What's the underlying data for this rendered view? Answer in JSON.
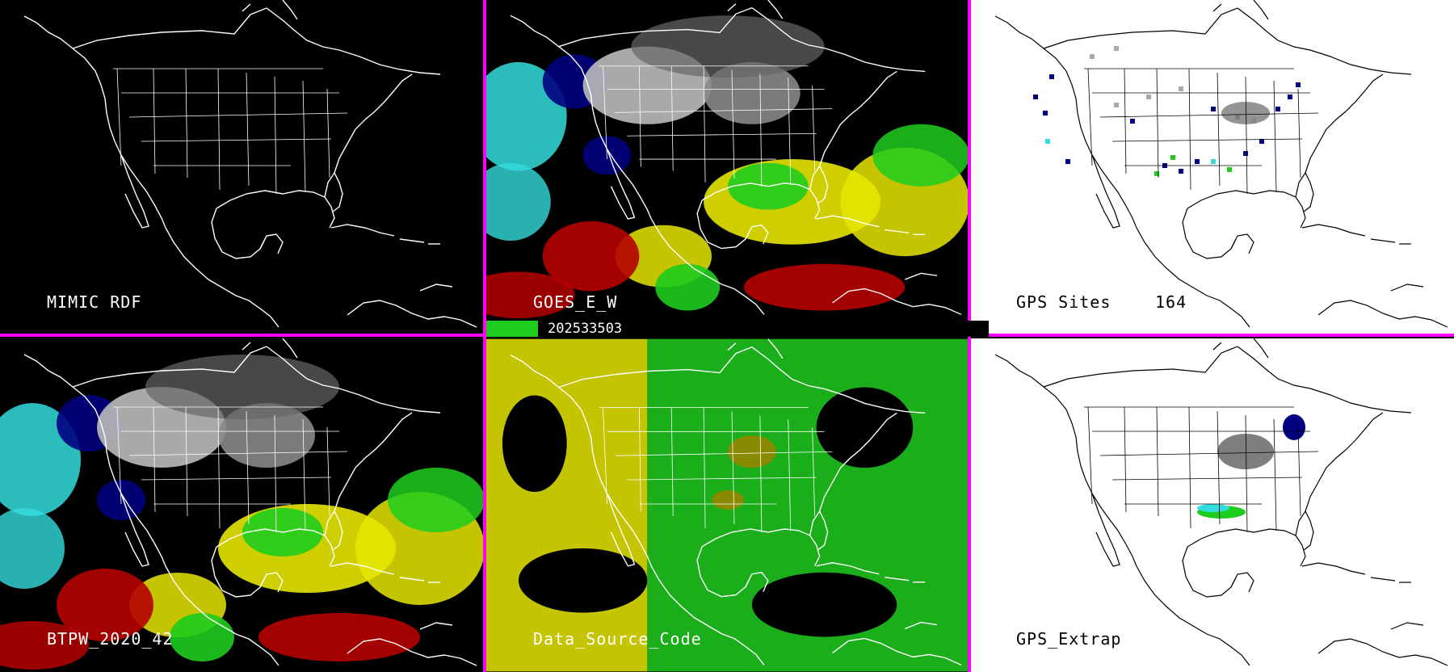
{
  "panels": [
    {
      "id": "mimic-rdf",
      "label": "MIMIC RDF"
    },
    {
      "id": "goes-e-w",
      "label": "GOES_E_W"
    },
    {
      "id": "gps-sites",
      "label": "GPS Sites",
      "count": "164"
    },
    {
      "id": "btpw",
      "label": "BTPW_2020_42"
    },
    {
      "id": "data-source",
      "label": "Data_Source_Code"
    },
    {
      "id": "gps-extrap",
      "label": "GPS_Extrap"
    }
  ],
  "timestamp": "202533503",
  "colors": {
    "divider": "#ff00ff",
    "background_dark": "#000000",
    "background_light": "#ffffff",
    "red": "#b50000",
    "yellow": "#e6e600",
    "green": "#1ecc1e",
    "cyan": "#33dddd",
    "navy": "#000080",
    "gray": "#aaaaaa"
  }
}
